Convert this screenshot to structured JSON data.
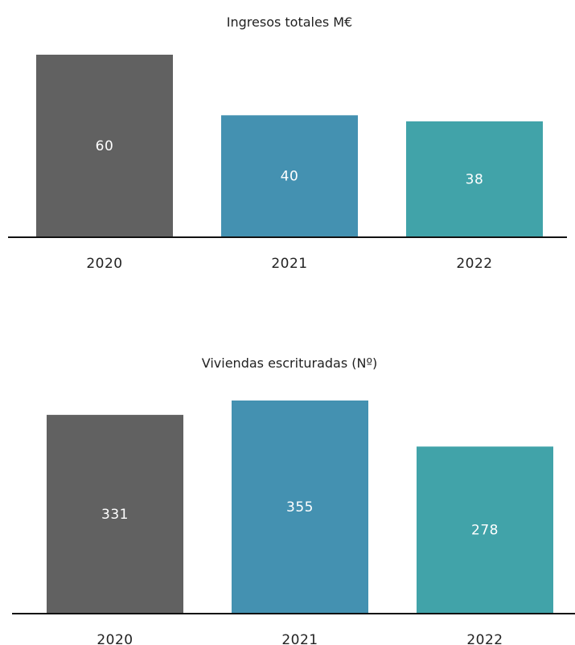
{
  "chart_data": [
    {
      "type": "bar",
      "title": "Ingresos totales M€",
      "categories": [
        "2020",
        "2021",
        "2022"
      ],
      "values": [
        60,
        40,
        38
      ],
      "data_labels": [
        "60",
        "40",
        "38"
      ],
      "colors": [
        "#616161",
        "#4491b1",
        "#41a3a9"
      ],
      "xlabel": "",
      "ylabel": "",
      "ylim": [
        0,
        60
      ],
      "grid": false,
      "legend": "none",
      "y_axis_visible": false
    },
    {
      "type": "bar",
      "title": "Viviendas escrituradas (Nº)",
      "categories": [
        "2020",
        "2021",
        "2022"
      ],
      "values": [
        331,
        355,
        278
      ],
      "data_labels": [
        "331",
        "355",
        "278"
      ],
      "colors": [
        "#616161",
        "#4491b1",
        "#41a3a9"
      ],
      "xlabel": "",
      "ylabel": "",
      "ylim": [
        0,
        355
      ],
      "grid": false,
      "legend": "none",
      "y_axis_visible": false
    }
  ]
}
